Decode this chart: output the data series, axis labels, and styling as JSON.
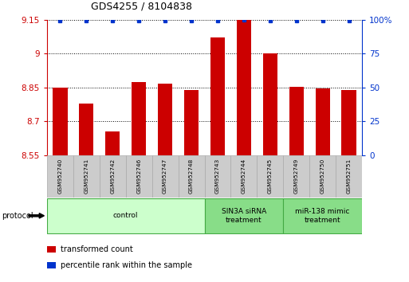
{
  "title": "GDS4255 / 8104838",
  "categories": [
    "GSM952740",
    "GSM952741",
    "GSM952742",
    "GSM952746",
    "GSM952747",
    "GSM952748",
    "GSM952743",
    "GSM952744",
    "GSM952745",
    "GSM952749",
    "GSM952750",
    "GSM952751"
  ],
  "bar_values": [
    8.85,
    8.78,
    8.655,
    8.875,
    8.865,
    8.838,
    9.07,
    9.148,
    9.0,
    8.852,
    8.845,
    8.838
  ],
  "percentile_values": [
    99,
    99,
    99,
    99,
    99,
    99,
    99,
    100,
    99,
    99,
    99,
    99
  ],
  "bar_color": "#cc0000",
  "dot_color": "#0033cc",
  "ylim": [
    8.55,
    9.15
  ],
  "ylim_right": [
    0,
    100
  ],
  "yticks_left": [
    8.55,
    8.7,
    8.85,
    9.0,
    9.15
  ],
  "yticks_right": [
    0,
    25,
    50,
    75,
    100
  ],
  "ytick_labels_left": [
    "8.55",
    "8.7",
    "8.85",
    "9",
    "9.15"
  ],
  "ytick_labels_right": [
    "0",
    "25",
    "50",
    "75",
    "100%"
  ],
  "grid_lines": [
    8.7,
    8.85,
    9.0
  ],
  "groups": [
    {
      "label": "control",
      "start": 0,
      "end": 6,
      "color": "#ccffcc",
      "edge_color": "#44aa44"
    },
    {
      "label": "SIN3A siRNA\ntreatment",
      "start": 6,
      "end": 9,
      "color": "#88dd88",
      "edge_color": "#44aa44"
    },
    {
      "label": "miR-138 mimic\ntreatment",
      "start": 9,
      "end": 12,
      "color": "#88dd88",
      "edge_color": "#44aa44"
    }
  ],
  "protocol_label": "protocol",
  "legend_items": [
    {
      "label": "transformed count",
      "color": "#cc0000"
    },
    {
      "label": "percentile rank within the sample",
      "color": "#0033cc"
    }
  ],
  "bar_width": 0.55,
  "cell_color": "#cccccc",
  "cell_edge_color": "#aaaaaa"
}
